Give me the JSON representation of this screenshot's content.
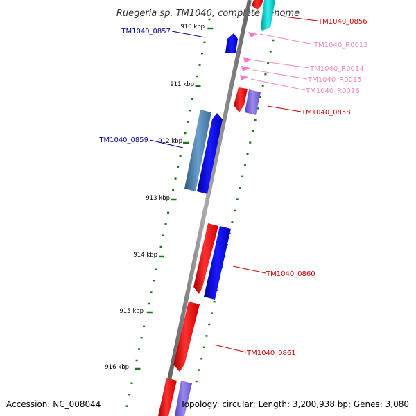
{
  "title": "Ruegeria sp. TM1040, complete genome",
  "footer": {
    "accession": "Accession: NC_008044",
    "topology": "Topology: circular; Length: 3,200,938 bp; Genes: 3,080"
  },
  "colors": {
    "backbone": "#808080",
    "tick": "#1a7a1a",
    "red_gene": "#ff0000",
    "blue_gene": "#0000ff",
    "steel_gene": "#4682b4",
    "violet_gene": "#7b68ee",
    "cyan_gene": "#00cccc",
    "rna": "#ff77cc",
    "label_red": "#cc0000",
    "label_blue": "#000099",
    "label_pink": "#ee88bb"
  },
  "ticks": [
    {
      "label": "910 kbp"
    },
    {
      "label": "911 kbp"
    },
    {
      "label": "912 kbp"
    },
    {
      "label": "913 kbp"
    },
    {
      "label": "914 kbp"
    },
    {
      "label": "915 kbp"
    },
    {
      "label": "916 kbp"
    }
  ],
  "gene_labels": [
    {
      "text": "TM1040_0856",
      "color": "red"
    },
    {
      "text": "TM1040_0857",
      "color": "blue"
    },
    {
      "text": "TM1040_R0013",
      "color": "pink"
    },
    {
      "text": "TM1040_R0014",
      "color": "pink"
    },
    {
      "text": "TM1040_R0015",
      "color": "pink"
    },
    {
      "text": "TM1040_R0016",
      "color": "pink"
    },
    {
      "text": "TM1040_0858",
      "color": "red"
    },
    {
      "text": "TM1040_0859",
      "color": "blue"
    },
    {
      "text": "TM1040_0860",
      "color": "red"
    },
    {
      "text": "TM1040_0861",
      "color": "red"
    }
  ]
}
